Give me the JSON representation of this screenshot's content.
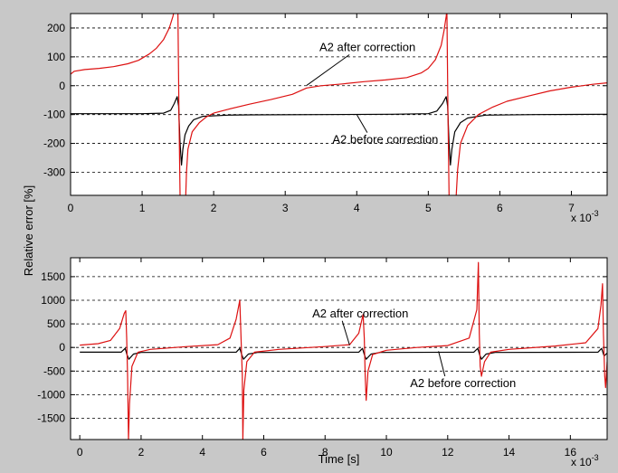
{
  "chart_data": [
    {
      "type": "line",
      "ylabel": "Relative error [%]",
      "xlabel": "",
      "x_exponent_label": "x 10",
      "x_exponent_power": "-3",
      "xlim": [
        0,
        7.5
      ],
      "ylim": [
        -380,
        250
      ],
      "grid": true,
      "xticks": [
        0,
        1,
        2,
        3,
        4,
        5,
        6,
        7
      ],
      "yticks": [
        200,
        100,
        0,
        -100,
        -200,
        -300
      ],
      "annotations": [
        {
          "text": "A2 after correction",
          "x": 4.15,
          "y": 120,
          "arrow_to": [
            3.3,
            1
          ]
        },
        {
          "text": "A2 before correction",
          "x": 4.4,
          "y": -200,
          "arrow_to": [
            4.0,
            -100
          ]
        }
      ],
      "series": [
        {
          "name": "A2 after correction",
          "color": "#dd1111",
          "points": [
            [
              0,
              40
            ],
            [
              0.05,
              50
            ],
            [
              0.2,
              56
            ],
            [
              0.4,
              60
            ],
            [
              0.6,
              66
            ],
            [
              0.8,
              76
            ],
            [
              0.95,
              88
            ],
            [
              1.1,
              110
            ],
            [
              1.2,
              130
            ],
            [
              1.3,
              160
            ],
            [
              1.38,
              200
            ],
            [
              1.43,
              240
            ],
            [
              1.45,
              262
            ],
            null,
            [
              1.5,
              262
            ],
            [
              1.515,
              -100
            ],
            [
              1.53,
              -380
            ],
            null,
            [
              1.61,
              -380
            ],
            [
              1.62,
              -300
            ],
            [
              1.64,
              -220
            ],
            [
              1.7,
              -160
            ],
            [
              1.8,
              -128
            ],
            [
              1.9,
              -108
            ],
            [
              2.0,
              -95
            ],
            [
              2.2,
              -82
            ],
            [
              2.5,
              -64
            ],
            [
              2.8,
              -48
            ],
            [
              3.1,
              -30
            ],
            [
              3.3,
              -8
            ],
            [
              3.5,
              0
            ],
            [
              3.8,
              6
            ],
            [
              4.1,
              14
            ],
            [
              4.4,
              20
            ],
            [
              4.7,
              28
            ],
            [
              4.9,
              44
            ],
            [
              5.0,
              60
            ],
            [
              5.1,
              90
            ],
            [
              5.18,
              140
            ],
            [
              5.22,
              190
            ],
            [
              5.25,
              240
            ],
            [
              5.26,
              262
            ],
            null,
            [
              5.26,
              262
            ],
            [
              5.275,
              -100
            ],
            [
              5.29,
              -380
            ],
            null,
            [
              5.39,
              -380
            ],
            [
              5.41,
              -290
            ],
            [
              5.45,
              -200
            ],
            [
              5.55,
              -138
            ],
            [
              5.7,
              -100
            ],
            [
              5.9,
              -74
            ],
            [
              6.1,
              -54
            ],
            [
              6.4,
              -36
            ],
            [
              6.7,
              -18
            ],
            [
              7.0,
              -5
            ],
            [
              7.3,
              5
            ],
            [
              7.5,
              10
            ]
          ]
        },
        {
          "name": "A2 before correction",
          "color": "#000000",
          "points": [
            [
              0,
              -97
            ],
            [
              0.5,
              -97
            ],
            [
              1.0,
              -97
            ],
            [
              1.3,
              -95
            ],
            [
              1.4,
              -85
            ],
            [
              1.45,
              -62
            ],
            [
              1.49,
              -38
            ],
            [
              1.51,
              -70
            ],
            [
              1.53,
              -200
            ],
            [
              1.55,
              -275
            ],
            [
              1.57,
              -220
            ],
            [
              1.6,
              -170
            ],
            [
              1.65,
              -140
            ],
            [
              1.72,
              -118
            ],
            [
              1.85,
              -106
            ],
            [
              2.2,
              -102
            ],
            [
              2.5,
              -101
            ],
            [
              3.5,
              -100
            ],
            [
              4.5,
              -99
            ],
            [
              5.0,
              -97
            ],
            [
              5.12,
              -88
            ],
            [
              5.2,
              -62
            ],
            [
              5.25,
              -38
            ],
            [
              5.27,
              -70
            ],
            [
              5.29,
              -200
            ],
            [
              5.31,
              -275
            ],
            [
              5.33,
              -220
            ],
            [
              5.37,
              -160
            ],
            [
              5.45,
              -128
            ],
            [
              5.55,
              -112
            ],
            [
              5.8,
              -102
            ],
            [
              6.5,
              -100
            ],
            [
              7.5,
              -99
            ]
          ]
        }
      ]
    },
    {
      "type": "line",
      "ylabel": "",
      "xlabel": "Time [s]",
      "x_exponent_label": "x 10",
      "x_exponent_power": "-3",
      "xlim": [
        -0.3,
        17.2
      ],
      "ylim": [
        -1950,
        1900
      ],
      "grid": true,
      "xticks": [
        0,
        2,
        4,
        6,
        8,
        10,
        12,
        14,
        16
      ],
      "yticks": [
        1500,
        1000,
        500,
        0,
        -500,
        -1000,
        -1500
      ],
      "annotations": [
        {
          "text": "A2 after correction",
          "x": 9.15,
          "y": 640,
          "arrow_to": [
            8.8,
            50
          ]
        },
        {
          "text": "A2 before correction",
          "x": 12.5,
          "y": -840,
          "arrow_to": [
            11.7,
            -80
          ]
        }
      ],
      "series": [
        {
          "name": "A2 after correction",
          "color": "#dd1111",
          "points": [
            [
              0,
              50
            ],
            [
              0.6,
              80
            ],
            [
              1.0,
              150
            ],
            [
              1.3,
              400
            ],
            [
              1.45,
              720
            ],
            [
              1.5,
              780
            ],
            [
              1.53,
              200
            ],
            [
              1.56,
              -600
            ],
            [
              1.59,
              -1950
            ],
            [
              1.62,
              -1200
            ],
            [
              1.7,
              -400
            ],
            [
              1.9,
              -100
            ],
            [
              2.3,
              -40
            ],
            [
              3.5,
              20
            ],
            [
              4.5,
              60
            ],
            [
              4.9,
              200
            ],
            [
              5.1,
              600
            ],
            [
              5.22,
              1000
            ],
            [
              5.26,
              200
            ],
            [
              5.3,
              -600
            ],
            [
              5.32,
              -1950
            ],
            [
              5.35,
              -900
            ],
            [
              5.45,
              -300
            ],
            [
              5.7,
              -100
            ],
            [
              6.5,
              -40
            ],
            [
              8.0,
              20
            ],
            [
              8.8,
              60
            ],
            [
              9.1,
              300
            ],
            [
              9.24,
              700
            ],
            [
              9.28,
              200
            ],
            [
              9.31,
              -600
            ],
            [
              9.34,
              -1120
            ],
            [
              9.4,
              -500
            ],
            [
              9.55,
              -150
            ],
            [
              10.0,
              -60
            ],
            [
              11.0,
              0
            ],
            [
              12.0,
              40
            ],
            [
              12.7,
              200
            ],
            [
              12.95,
              800
            ],
            [
              13.0,
              1800
            ],
            [
              13.03,
              300
            ],
            [
              13.06,
              -400
            ],
            [
              13.1,
              -610
            ],
            [
              13.2,
              -300
            ],
            [
              13.4,
              -100
            ],
            [
              14.0,
              -40
            ],
            [
              15.5,
              30
            ],
            [
              16.5,
              100
            ],
            [
              16.9,
              400
            ],
            [
              17.0,
              900
            ],
            [
              17.05,
              1350
            ],
            [
              17.08,
              300
            ],
            [
              17.12,
              -600
            ],
            [
              17.15,
              -850
            ],
            [
              17.2,
              -300
            ]
          ]
        },
        {
          "name": "A2 before correction",
          "color": "#000000",
          "points": [
            [
              0,
              -100
            ],
            [
              1.35,
              -100
            ],
            [
              1.48,
              -20
            ],
            [
              1.54,
              -150
            ],
            [
              1.6,
              -250
            ],
            [
              1.75,
              -140
            ],
            [
              2.0,
              -105
            ],
            [
              5.1,
              -100
            ],
            [
              5.22,
              -20
            ],
            [
              5.28,
              -150
            ],
            [
              5.34,
              -250
            ],
            [
              5.5,
              -140
            ],
            [
              5.8,
              -105
            ],
            [
              9.1,
              -100
            ],
            [
              9.22,
              -20
            ],
            [
              9.28,
              -150
            ],
            [
              9.34,
              -250
            ],
            [
              9.5,
              -140
            ],
            [
              9.8,
              -105
            ],
            [
              12.85,
              -100
            ],
            [
              12.98,
              -20
            ],
            [
              13.04,
              -150
            ],
            [
              13.1,
              -250
            ],
            [
              13.25,
              -140
            ],
            [
              13.55,
              -105
            ],
            [
              16.9,
              -100
            ],
            [
              17.02,
              -20
            ],
            [
              17.1,
              -180
            ],
            [
              17.2,
              -120
            ]
          ]
        }
      ]
    }
  ]
}
